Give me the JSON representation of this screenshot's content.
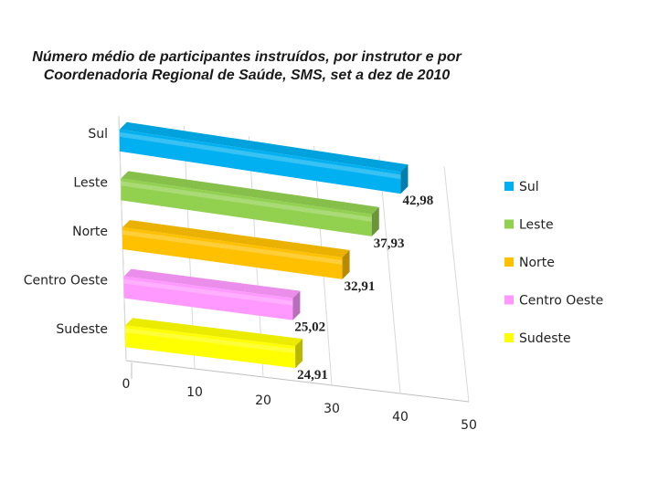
{
  "chart_data": {
    "type": "bar",
    "orientation": "horizontal",
    "style": "3d",
    "title_lines": [
      "Número médio de participantes instruídos, por instrutor e por",
      "Coordenadoria Regional de Saúde, SMS, set a dez de 2010"
    ],
    "categories": [
      "Sul",
      "Leste",
      "Norte",
      "Centro Oeste",
      "Sudeste"
    ],
    "values": [
      42.98,
      37.93,
      32.91,
      25.02,
      24.91
    ],
    "data_labels": [
      "42,98",
      "37,93",
      "32,91",
      "25,02",
      "24,91"
    ],
    "colors": [
      "#00b0f0",
      "#92d050",
      "#ffc000",
      "#ff99ff",
      "#ffff00"
    ],
    "xticks": [
      "0",
      "10",
      "20",
      "30",
      "40",
      "50"
    ],
    "xlim": [
      0,
      50
    ],
    "xlabel": "",
    "ylabel": "",
    "legend": {
      "position": "right",
      "entries": [
        "Sul",
        "Leste",
        "Norte",
        "Centro Oeste",
        "Sudeste"
      ]
    }
  }
}
